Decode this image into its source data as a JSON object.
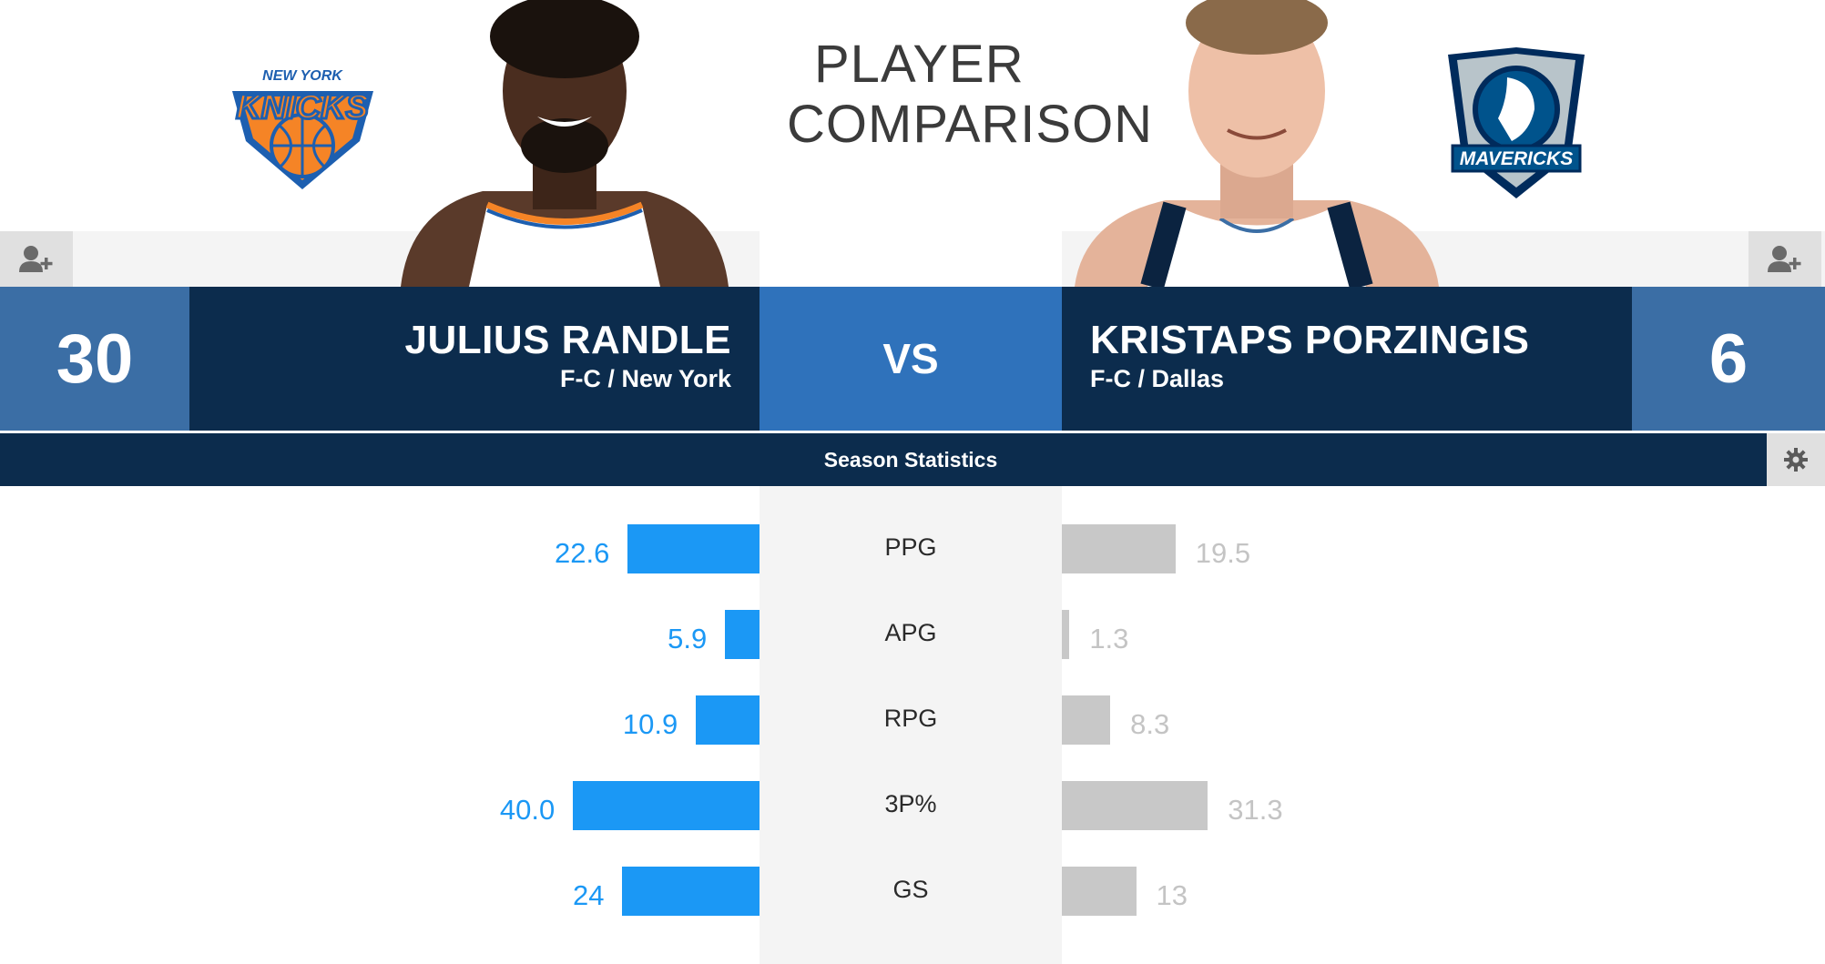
{
  "page": {
    "title_line1": "PLAYER",
    "title_line2": "COMPARISON"
  },
  "player_left": {
    "number": "30",
    "name": "JULIUS RANDLE",
    "meta": "F-C / New York",
    "team_logo_icon": "knicks-logo-icon",
    "team_color": "#f58426"
  },
  "player_right": {
    "number": "6",
    "name": "KRISTAPS PORZINGIS",
    "meta": "F-C / Dallas",
    "team_logo_icon": "mavericks-logo-icon",
    "team_color": "#00538c"
  },
  "vs_label": "VS",
  "season_label": "Season Statistics",
  "colors": {
    "left_bar": "#1b98f5",
    "right_bar": "#c8c8c8",
    "navy": "#0c2c4d",
    "vs_blue": "#2f72bb",
    "number_blue": "#3b6ea5"
  },
  "stats": [
    {
      "label": "PPG",
      "left": "22.6",
      "right": "19.5",
      "left_value": 22.6,
      "right_value": 19.5
    },
    {
      "label": "APG",
      "left": "5.9",
      "right": "1.3",
      "left_value": 5.9,
      "right_value": 1.3
    },
    {
      "label": "RPG",
      "left": "10.9",
      "right": "8.3",
      "left_value": 10.9,
      "right_value": 8.3
    },
    {
      "label": "3P%",
      "left": "40.0",
      "right": "31.3",
      "left_value": 40.0,
      "right_value": 31.3
    },
    {
      "label": "GS",
      "left": "24",
      "right": "13",
      "left_value": 24,
      "right_value": 13
    }
  ]
}
